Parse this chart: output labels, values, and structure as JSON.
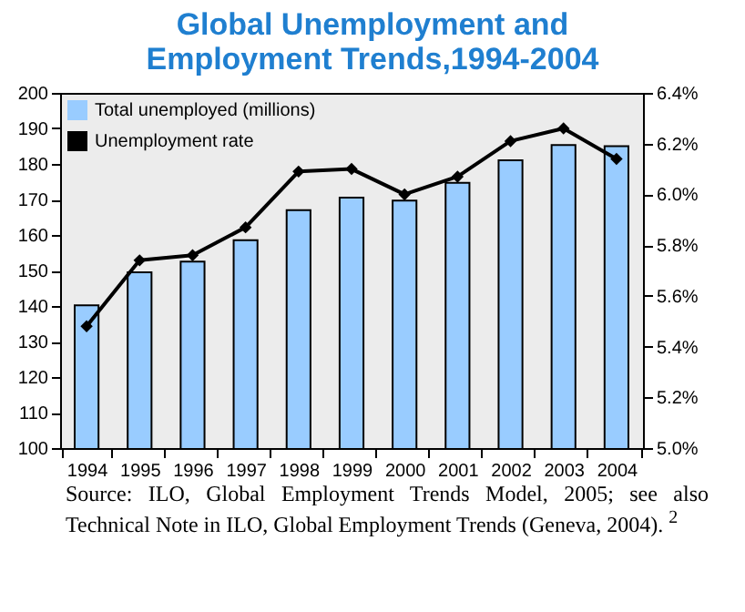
{
  "chart_data": {
    "type": "bar",
    "title": "Global Unemployment and Employment Trends,1994-2004",
    "categories": [
      "1994",
      "1995",
      "1996",
      "1997",
      "1998",
      "1999",
      "2000",
      "2001",
      "2002",
      "2003",
      "2004"
    ],
    "series": [
      {
        "name": "Total unemployed (millions)",
        "color": "#99ccff",
        "values": [
          140.2,
          149.5,
          152.5,
          158.5,
          167,
          170.5,
          169.7,
          174.7,
          181,
          185.3,
          185
        ]
      },
      {
        "name": "Unemployment rate",
        "type": "line",
        "axis": "y2",
        "color": "#000000",
        "values": [
          5.48,
          5.74,
          5.76,
          5.87,
          6.09,
          6.1,
          6.0,
          6.07,
          6.21,
          6.26,
          6.14
        ]
      }
    ],
    "ylim": [
      100,
      200
    ],
    "yticks": [
      100,
      110,
      120,
      130,
      140,
      150,
      160,
      170,
      180,
      190,
      200
    ],
    "y2lim": [
      5.0,
      6.4
    ],
    "y2ticks": [
      {
        "value": 5.0,
        "label": "5.0%"
      },
      {
        "value": 5.2,
        "label": "5.2%"
      },
      {
        "value": 5.4,
        "label": "5.4%"
      },
      {
        "value": 5.6,
        "label": "5.6%"
      },
      {
        "value": 5.8,
        "label": "5.8%"
      },
      {
        "value": 6.0,
        "label": "6.0%"
      },
      {
        "value": 6.2,
        "label": "6.2%"
      },
      {
        "value": 6.4,
        "label": "6.4%"
      }
    ],
    "marker": "diamond",
    "legend": "top left",
    "annotations": [
      "Source: ILO, Global Employment Trends Model, 2005; see also Technical Note in ILO, Global Employment Trends (Geneva, 2004). $^{2}$"
    ]
  }
}
